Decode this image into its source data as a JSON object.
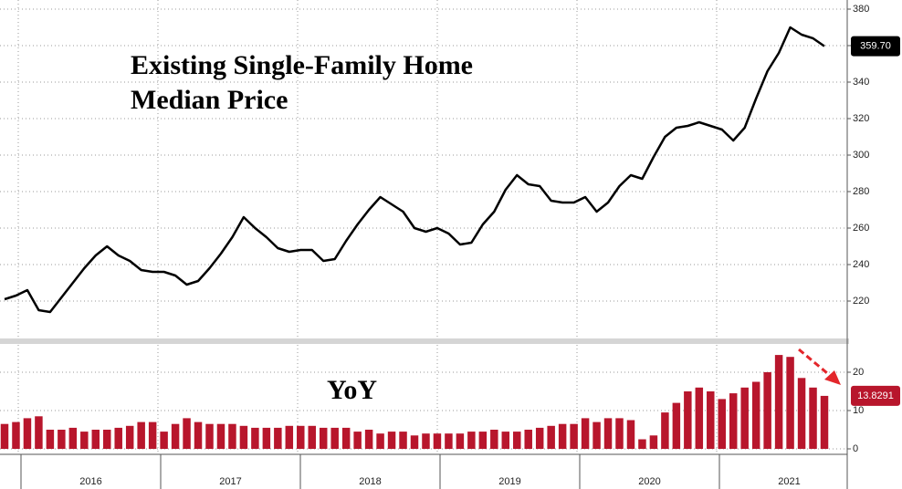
{
  "chart_data": [
    {
      "type": "line",
      "title": [
        "Existing Single-Family Home",
        "Median Price"
      ],
      "color": "#000000",
      "values": [
        221,
        223,
        226,
        215,
        214,
        222,
        230,
        238,
        245,
        250,
        245,
        242,
        237,
        236,
        236,
        234,
        229,
        231,
        238,
        246,
        255,
        266,
        260,
        255,
        249,
        247,
        248,
        248,
        242,
        243,
        253,
        262,
        270,
        277,
        273,
        269,
        260,
        258,
        260,
        257,
        251,
        252,
        262,
        269,
        281,
        289,
        284,
        283,
        275,
        274,
        274,
        277,
        269,
        274,
        283,
        289,
        287,
        299,
        310,
        315,
        316,
        318,
        316,
        314,
        308,
        315,
        331,
        346,
        356,
        370,
        366,
        364,
        359.7
      ],
      "last_label": "359.70",
      "ylim": [
        200,
        385
      ],
      "yticks": [
        220,
        240,
        260,
        280,
        300,
        320,
        340,
        360,
        380
      ],
      "grid": true
    },
    {
      "type": "bar",
      "title": "YoY",
      "color": "#b8162c",
      "values": [
        6.5,
        7,
        8,
        8.5,
        5,
        5,
        5.5,
        4.5,
        5,
        5,
        5.5,
        6,
        7,
        7,
        4.5,
        6.5,
        8,
        7,
        6.5,
        6.5,
        6.5,
        6,
        5.5,
        5.5,
        5.5,
        6,
        6,
        6,
        5.5,
        5.5,
        5.5,
        4.5,
        5,
        4,
        4.5,
        4.5,
        3.5,
        4,
        4,
        4,
        4,
        4.5,
        4.5,
        5,
        4.5,
        4.5,
        5,
        5.5,
        6,
        6.5,
        6.5,
        8,
        7,
        8,
        8,
        7.5,
        2.5,
        3.5,
        9.5,
        12,
        15,
        16,
        15,
        13,
        14.5,
        16,
        17.5,
        20,
        24.5,
        24,
        18.5,
        16,
        13.8291
      ],
      "ylim": [
        -1.5,
        27
      ],
      "yticks": [
        0,
        10,
        20
      ],
      "grid": true,
      "x_labels": [
        "2016",
        "2017",
        "2018",
        "2019",
        "2020",
        "2021"
      ]
    }
  ]
}
